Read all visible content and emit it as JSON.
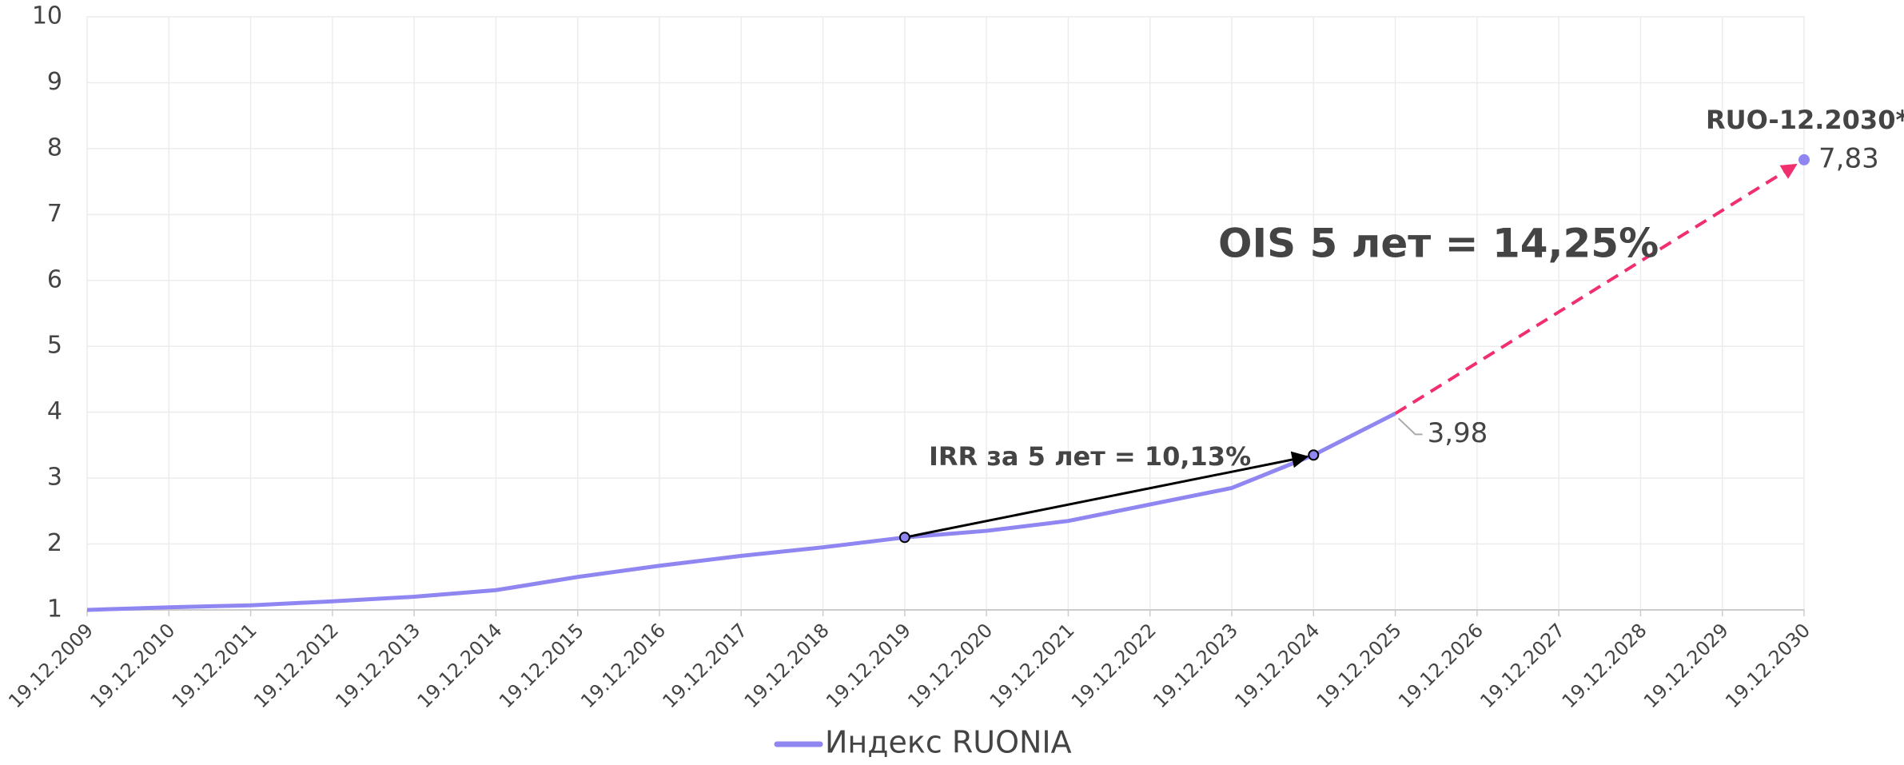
{
  "chart_data": {
    "type": "line",
    "categories": [
      "19.12.2009",
      "19.12.2010",
      "19.12.2011",
      "19.12.2012",
      "19.12.2013",
      "19.12.2014",
      "19.12.2015",
      "19.12.2016",
      "19.12.2017",
      "19.12.2018",
      "19.12.2019",
      "19.12.2020",
      "19.12.2021",
      "19.12.2022",
      "19.12.2023",
      "19.12.2024",
      "19.12.2025",
      "19.12.2026",
      "19.12.2027",
      "19.12.2028",
      "19.12.2029",
      "19.12.2030"
    ],
    "series": [
      {
        "name": "Индекс RUONIA",
        "color": "#8f86f2",
        "values": [
          1.0,
          1.04,
          1.07,
          1.13,
          1.2,
          1.3,
          1.5,
          1.67,
          1.82,
          1.95,
          2.1,
          2.2,
          2.35,
          2.6,
          2.85,
          3.35,
          3.98,
          null,
          null,
          null,
          null,
          null
        ],
        "value_labels": [
          null,
          null,
          null,
          null,
          null,
          null,
          null,
          null,
          null,
          null,
          null,
          null,
          null,
          null,
          null,
          null,
          "3,98",
          null,
          null,
          null,
          null,
          null
        ]
      }
    ],
    "forecast": {
      "label": "RUO-12.2030*",
      "color": "#f0306e",
      "x": [
        "19.12.2025",
        "19.12.2030"
      ],
      "values": [
        3.98,
        7.83
      ],
      "value_labels": [
        null,
        "7,83"
      ]
    },
    "irr": {
      "text": "IRR за 5 лет = 10,13%",
      "points": [
        "19.12.2019",
        "19.12.2024"
      ]
    },
    "ois": {
      "text": "OIS 5 лет = 14,25%"
    },
    "ylim": [
      1,
      10
    ],
    "yticks": [
      1,
      2,
      3,
      4,
      5,
      6,
      7,
      8,
      9,
      10
    ],
    "grid": true,
    "legend": "bottom"
  }
}
